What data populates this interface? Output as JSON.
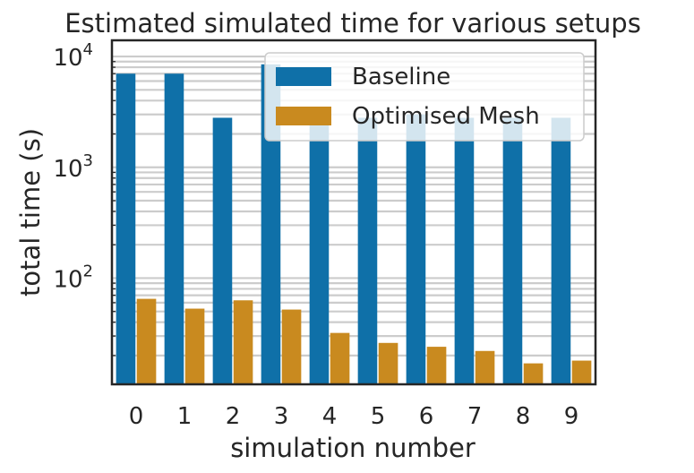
{
  "chart_data": {
    "type": "bar",
    "title": "Estimated simulated time for various setups",
    "xlabel": "simulation number",
    "ylabel": "total time (s)",
    "yscale": "log",
    "ylim": [
      11,
      14000
    ],
    "grid": true,
    "legend_position": "top-right",
    "categories": [
      "0",
      "1",
      "2",
      "3",
      "4",
      "5",
      "6",
      "7",
      "8",
      "9"
    ],
    "y_ticks": [
      {
        "base": "10",
        "exp": "2",
        "value": 100
      },
      {
        "base": "10",
        "exp": "3",
        "value": 1000
      },
      {
        "base": "10",
        "exp": "4",
        "value": 10000
      }
    ],
    "series": [
      {
        "name": "Baseline",
        "color": "#0f70a8",
        "values": [
          7000,
          7000,
          2800,
          8500,
          3500,
          2800,
          3000,
          2800,
          2800,
          2800
        ]
      },
      {
        "name": "Optimised Mesh",
        "color": "#c98a1f",
        "values": [
          65,
          53,
          63,
          52,
          32,
          26,
          24,
          22,
          17,
          18
        ]
      }
    ]
  }
}
